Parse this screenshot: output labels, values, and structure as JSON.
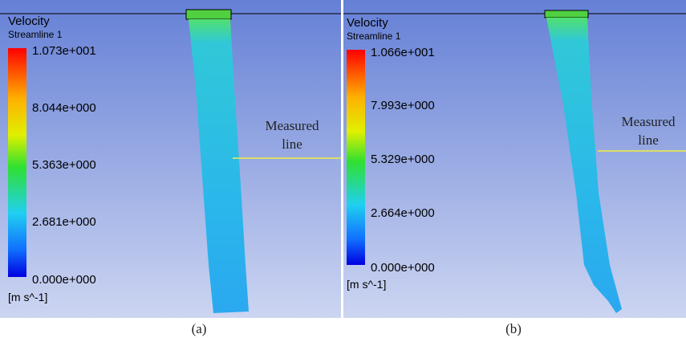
{
  "panels": [
    {
      "title": "Velocity",
      "subtitle": "Streamline 1",
      "ticks": [
        "1.073e+001",
        "8.044e+000",
        "5.363e+000",
        "2.681e+000",
        "0.000e+000"
      ],
      "unit": "[m s^-1]",
      "annotation": [
        "Measured",
        "line"
      ],
      "caption": "(a)"
    },
    {
      "title": "Velocity",
      "subtitle": "Streamline 1",
      "ticks": [
        "1.066e+001",
        "7.993e+000",
        "5.329e+000",
        "2.664e+000",
        "0.000e+000"
      ],
      "unit": "[m s^-1]",
      "annotation": [
        "Measured",
        "line"
      ],
      "caption": "(b)"
    }
  ]
}
